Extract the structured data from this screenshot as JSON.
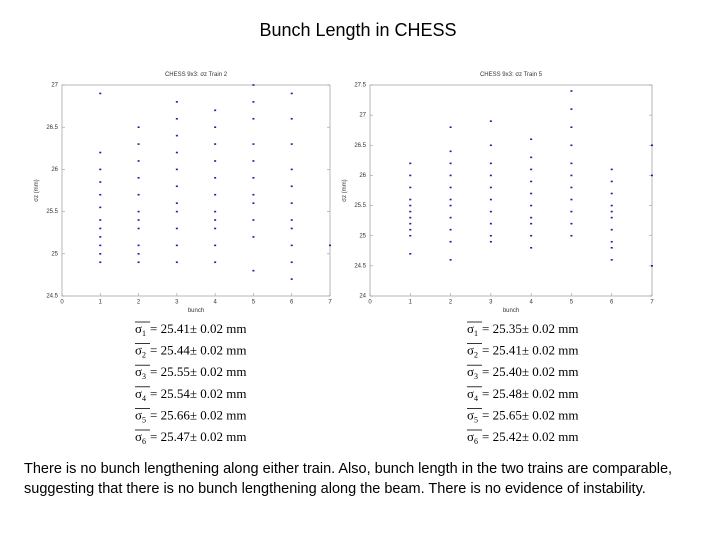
{
  "title": "Bunch Length in CHESS",
  "chart_data": [
    {
      "type": "scatter",
      "title": "CHESS 9x3: σz Train 2",
      "xlabel": "bunch",
      "ylabel": "σz (mm)",
      "xlim": [
        0,
        7
      ],
      "xticks": [
        0,
        1,
        2,
        3,
        4,
        5,
        6,
        7
      ],
      "ylim": [
        24.5,
        27
      ],
      "yticks": [
        24.5,
        25,
        25.5,
        26,
        26.5,
        27
      ],
      "series": [
        {
          "color": "#1c1ca8",
          "x": [
            1,
            1,
            1,
            1,
            1,
            1,
            1,
            1,
            1,
            1,
            1,
            1,
            2,
            2,
            2,
            2,
            2,
            2,
            2,
            2,
            2,
            2,
            2,
            3,
            3,
            3,
            3,
            3,
            3,
            3,
            3,
            3,
            3,
            3,
            4,
            4,
            4,
            4,
            4,
            4,
            4,
            4,
            4,
            4,
            4,
            5,
            5,
            5,
            5,
            5,
            5,
            5,
            5,
            5,
            5,
            5,
            6,
            6,
            6,
            6,
            6,
            6,
            6,
            6,
            6,
            6,
            6,
            7
          ],
          "values": [
            26.9,
            26.2,
            26.0,
            25.85,
            25.7,
            25.55,
            25.4,
            25.3,
            25.2,
            25.1,
            25.0,
            24.9,
            26.5,
            26.3,
            26.1,
            25.9,
            25.7,
            25.5,
            25.4,
            25.3,
            25.1,
            25.0,
            24.9,
            26.8,
            26.6,
            26.4,
            26.2,
            26.0,
            25.8,
            25.6,
            25.5,
            25.3,
            25.1,
            24.9,
            26.7,
            26.5,
            26.3,
            26.1,
            25.9,
            25.7,
            25.5,
            25.4,
            25.3,
            25.1,
            24.9,
            27.0,
            26.8,
            26.6,
            26.3,
            26.1,
            25.9,
            25.7,
            25.6,
            25.4,
            25.2,
            24.8,
            26.9,
            26.6,
            26.3,
            26.0,
            25.8,
            25.6,
            25.4,
            25.3,
            25.1,
            24.9,
            24.7,
            25.1
          ]
        }
      ]
    },
    {
      "type": "scatter",
      "title": "CHESS 9x3: σz Train 5",
      "xlabel": "bunch",
      "ylabel": "σz (mm)",
      "xlim": [
        0,
        7
      ],
      "xticks": [
        0,
        1,
        2,
        3,
        4,
        5,
        6,
        7
      ],
      "ylim": [
        24,
        27.5
      ],
      "yticks": [
        24,
        24.5,
        25,
        25.5,
        26,
        26.5,
        27,
        27.5
      ],
      "series": [
        {
          "color": "#1c1ca8",
          "x": [
            1,
            1,
            1,
            1,
            1,
            1,
            1,
            1,
            1,
            1,
            1,
            2,
            2,
            2,
            2,
            2,
            2,
            2,
            2,
            2,
            2,
            2,
            3,
            3,
            3,
            3,
            3,
            3,
            3,
            3,
            3,
            3,
            4,
            4,
            4,
            4,
            4,
            4,
            4,
            4,
            4,
            4,
            5,
            5,
            5,
            5,
            5,
            5,
            5,
            5,
            5,
            5,
            5,
            6,
            6,
            6,
            6,
            6,
            6,
            6,
            6,
            6,
            6,
            7,
            7,
            7
          ],
          "values": [
            26.2,
            26.0,
            25.8,
            25.6,
            25.5,
            25.4,
            25.3,
            25.2,
            25.1,
            25.0,
            24.7,
            26.8,
            26.4,
            26.2,
            26.0,
            25.8,
            25.6,
            25.5,
            25.3,
            25.1,
            24.9,
            24.6,
            26.9,
            26.5,
            26.2,
            26.0,
            25.8,
            25.6,
            25.4,
            25.2,
            25.0,
            24.9,
            26.6,
            26.3,
            26.1,
            25.9,
            25.7,
            25.5,
            25.3,
            25.2,
            25.0,
            24.8,
            27.4,
            27.1,
            26.8,
            26.5,
            26.2,
            26.0,
            25.8,
            25.6,
            25.4,
            25.2,
            25.0,
            26.1,
            25.9,
            25.7,
            25.5,
            25.4,
            25.3,
            25.1,
            24.9,
            24.8,
            24.6,
            26.5,
            26.0,
            24.5
          ]
        }
      ]
    }
  ],
  "equations": [
    [
      {
        "symbol": "σ",
        "index": "1",
        "text": "= 25.41± 0.02 mm"
      },
      {
        "symbol": "σ",
        "index": "2",
        "text": "= 25.44± 0.02 mm"
      },
      {
        "symbol": "σ",
        "index": "3",
        "text": "= 25.55± 0.02 mm"
      },
      {
        "symbol": "σ",
        "index": "4",
        "text": "= 25.54± 0.02 mm"
      },
      {
        "symbol": "σ",
        "index": "5",
        "text": "= 25.66± 0.02 mm"
      },
      {
        "symbol": "σ",
        "index": "6",
        "text": "= 25.47± 0.02 mm"
      }
    ],
    [
      {
        "symbol": "σ",
        "index": "1",
        "text": "= 25.35± 0.02 mm"
      },
      {
        "symbol": "σ",
        "index": "2",
        "text": "= 25.41± 0.02 mm"
      },
      {
        "symbol": "σ",
        "index": "3",
        "text": "= 25.40± 0.02 mm"
      },
      {
        "symbol": "σ",
        "index": "4",
        "text": "= 25.48± 0.02 mm"
      },
      {
        "symbol": "σ",
        "index": "5",
        "text": "= 25.65± 0.02 mm"
      },
      {
        "symbol": "σ",
        "index": "6",
        "text": "= 25.42± 0.02 mm"
      }
    ]
  ],
  "caption": "There is no bunch lengthening along either train. Also, bunch length in the two trains are comparable, suggesting that there is no bunch lengthening along the beam. There is no evidence of instability."
}
